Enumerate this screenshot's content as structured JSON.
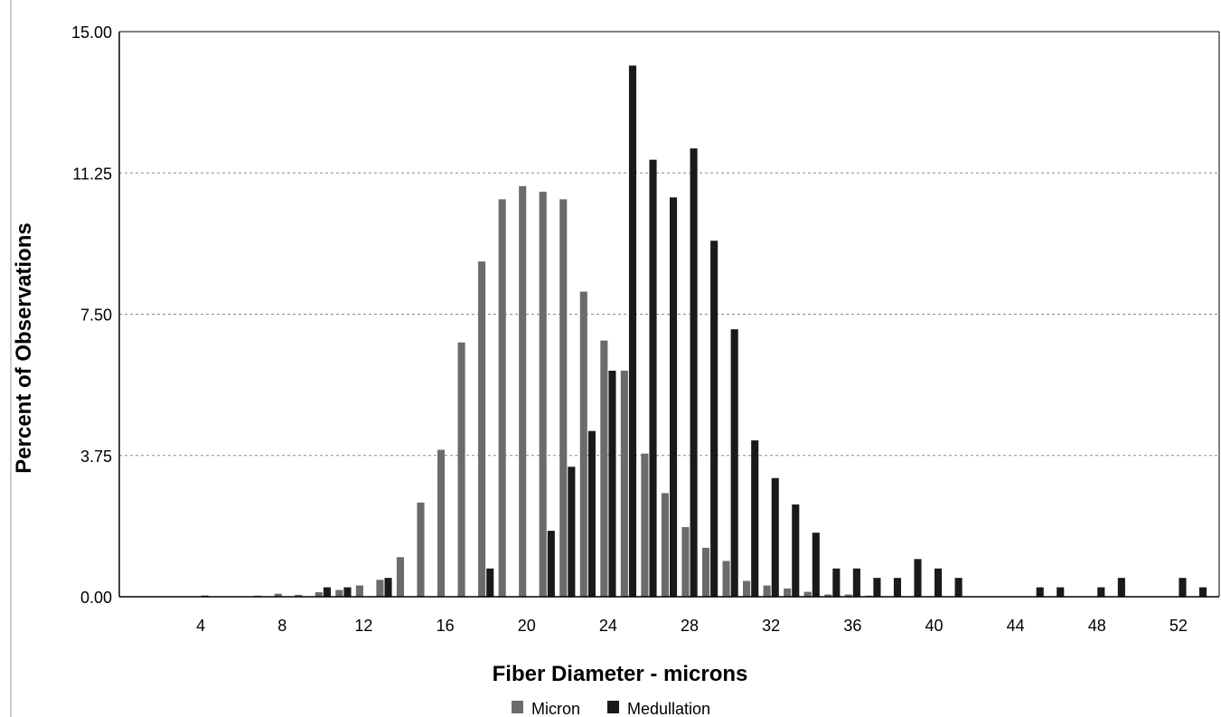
{
  "chart_data": {
    "type": "bar",
    "title": "",
    "xlabel": "Fiber Diameter - microns",
    "ylabel": "Percent of Observations",
    "ylim": [
      0,
      15
    ],
    "xlim": [
      0,
      54
    ],
    "y_ticks": [
      "0.00",
      "3.75",
      "7.50",
      "11.25",
      "15.00"
    ],
    "x_ticks": [
      "4",
      "8",
      "12",
      "16",
      "20",
      "24",
      "28",
      "32",
      "36",
      "40",
      "44",
      "48",
      "52"
    ],
    "grid": "horizontal-dashed",
    "legend_position": "bottom",
    "x": [
      1,
      2,
      3,
      4,
      5,
      6,
      7,
      8,
      9,
      10,
      11,
      12,
      13,
      14,
      15,
      16,
      17,
      18,
      19,
      20,
      21,
      22,
      23,
      24,
      25,
      26,
      27,
      28,
      29,
      30,
      31,
      32,
      33,
      34,
      35,
      36,
      37,
      38,
      39,
      40,
      41,
      42,
      43,
      44,
      45,
      46,
      47,
      48,
      49,
      50,
      51,
      52,
      53
    ],
    "series": [
      {
        "name": "Micron",
        "color": "#6b6b6b",
        "values": [
          0,
          0,
          0,
          0,
          0,
          0,
          0.03,
          0.08,
          0.05,
          0.12,
          0.18,
          0.3,
          0.45,
          1.05,
          2.5,
          3.9,
          6.75,
          8.9,
          10.55,
          10.9,
          10.75,
          10.55,
          8.1,
          6.8,
          6.0,
          3.8,
          2.75,
          1.85,
          1.3,
          0.95,
          0.42,
          0.3,
          0.22,
          0.13,
          0.06,
          0.06,
          0.03,
          0,
          0,
          0,
          0,
          0,
          0,
          0,
          0,
          0,
          0,
          0,
          0,
          0,
          0,
          0,
          0
        ]
      },
      {
        "name": "Medullation",
        "color": "#1a1a1a",
        "values": [
          0,
          0,
          0,
          0.03,
          0,
          0,
          0,
          0,
          0,
          0.25,
          0.25,
          0,
          0.5,
          0,
          0,
          0,
          0,
          0.75,
          0,
          0,
          1.75,
          3.45,
          4.4,
          6.0,
          14.1,
          11.6,
          10.6,
          11.9,
          9.45,
          7.1,
          4.15,
          3.15,
          2.45,
          1.7,
          0.75,
          0.75,
          0.5,
          0.5,
          1.0,
          0.75,
          0.5,
          0,
          0,
          0,
          0.25,
          0.25,
          0,
          0.25,
          0.5,
          0,
          0,
          0.5,
          0.25
        ]
      }
    ]
  }
}
